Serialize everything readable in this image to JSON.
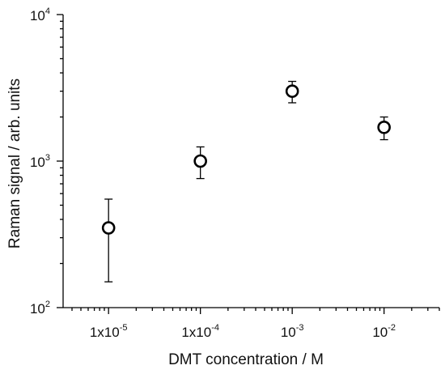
{
  "chart_data": {
    "type": "scatter",
    "title": "",
    "xlabel": "DMT concentration / M",
    "ylabel": "Raman signal / arb. units",
    "x_scale": "log",
    "y_scale": "log",
    "xlim": [
      3.2e-06,
      0.04
    ],
    "ylim": [
      100,
      10000
    ],
    "grid": false,
    "legend": "none",
    "x_ticks": [
      {
        "value": 1e-05,
        "mantissa": "1x10",
        "exponent": "-5"
      },
      {
        "value": 0.0001,
        "mantissa": "1x10",
        "exponent": "-4"
      },
      {
        "value": 0.001,
        "mantissa": "10",
        "exponent": "-3"
      },
      {
        "value": 0.01,
        "mantissa": "10",
        "exponent": "-2"
      }
    ],
    "y_ticks": [
      {
        "value": 100,
        "mantissa": "10",
        "exponent": "2"
      },
      {
        "value": 1000,
        "mantissa": "10",
        "exponent": "3"
      },
      {
        "value": 10000,
        "mantissa": "10",
        "exponent": "4"
      }
    ],
    "series": [
      {
        "marker": "open-circle",
        "color": "#000000",
        "x": [
          1e-05,
          0.0001,
          0.001,
          0.01
        ],
        "y": [
          350,
          1000,
          3000,
          1700
        ],
        "y_err_low": [
          150,
          760,
          2500,
          1400
        ],
        "y_err_high": [
          550,
          1250,
          3500,
          2000
        ]
      }
    ]
  }
}
